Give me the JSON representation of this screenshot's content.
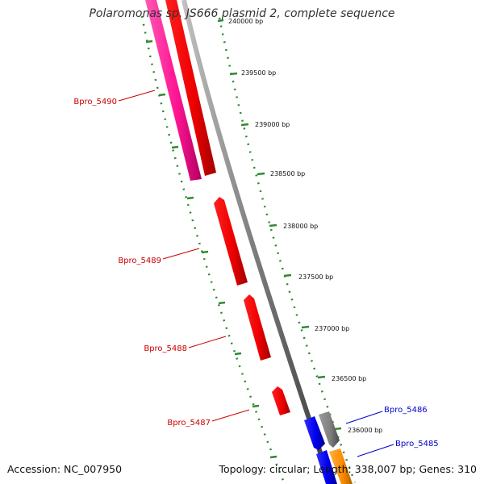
{
  "title": "Polaromonas sp. JS666 plasmid 2, complete sequence",
  "footer": {
    "accession": "Accession: NC_007950",
    "stats": "Topology: circular; Length: 338,007 bp; Genes: 310"
  },
  "colors": {
    "forward_gene": "#ff0000",
    "forward_gene_alt": "#ff1493",
    "reverse_gene": "#0000ff",
    "reverse_gene_alt": "#ff8c00",
    "other_gene": "#808080",
    "backbone": "#808080",
    "ticks": "#2e8b2e",
    "forward_label": "#cc0000",
    "reverse_label": "#0000cc"
  },
  "ruler": {
    "ticks": [
      {
        "label": "239500 bp"
      },
      {
        "label": "239000 bp"
      },
      {
        "label": "238500 bp"
      },
      {
        "label": "238000 bp"
      },
      {
        "label": "237500 bp"
      },
      {
        "label": "237000 bp"
      },
      {
        "label": "236500 bp"
      },
      {
        "label": "236000 bp"
      }
    ],
    "partial_top_label": "240000 bp"
  },
  "genes": {
    "forward": [
      {
        "label": "Bpro_5490"
      },
      {
        "label": "Bpro_5489"
      },
      {
        "label": "Bpro_5488"
      },
      {
        "label": "Bpro_5487"
      }
    ],
    "reverse": [
      {
        "label": "Bpro_5486"
      },
      {
        "label": "Bpro_5485"
      }
    ]
  }
}
